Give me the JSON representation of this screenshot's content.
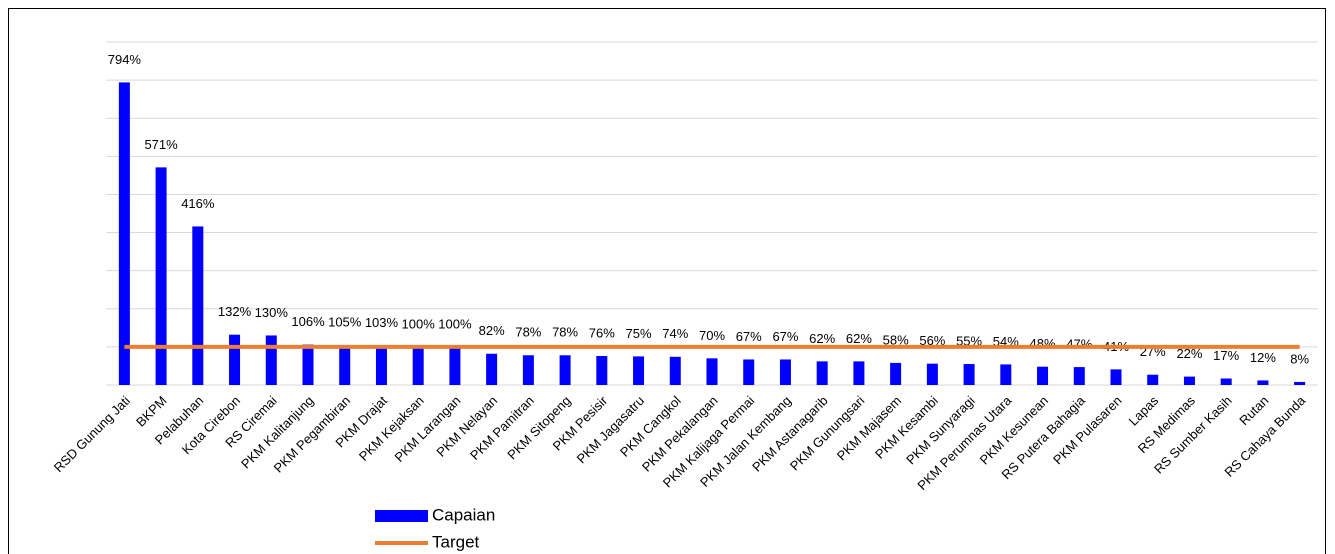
{
  "chart_data": {
    "type": "bar",
    "categories": [
      "RSD Gunung Jati",
      "BKPM",
      "Pelabuhan",
      "Kota Cirebon",
      "RS Ciremai",
      "PKM Kalitanjung",
      "PKM Pegambiran",
      "PKM Drajat",
      "PKM Kejaksan",
      "PKM Larangan",
      "PKM Nelayan",
      "PKM Pamitran",
      "PKM Sitopeng",
      "PKM Pesisir",
      "PKM Jagasatru",
      "PKM Cangkol",
      "PKM Pekalangan",
      "PKM Kalijaga Permai",
      "PKM Jalan Kembang",
      "PKM Astanagarib",
      "PKM Gunungsari",
      "PKM Majasem",
      "PKM Kesambi",
      "PKM Sunyaragi",
      "PKM Perumnas Utara",
      "PKM Kesunean",
      "RS Putera Bahagia",
      "PKM Pulasaren",
      "Lapas",
      "RS Medimas",
      "RS Sumber Kasih",
      "Rutan",
      "RS Cahaya Bunda"
    ],
    "series": [
      {
        "name": "Capaian",
        "color": "#0000ff",
        "type": "bar",
        "values": [
          794,
          571,
          416,
          132,
          130,
          106,
          105,
          103,
          100,
          100,
          82,
          78,
          78,
          76,
          75,
          74,
          70,
          67,
          67,
          62,
          62,
          58,
          56,
          55,
          54,
          48,
          47,
          41,
          27,
          22,
          17,
          12,
          8
        ],
        "value_labels": [
          "794%",
          "571%",
          "416%",
          "132%",
          "130%",
          "106%",
          "105%",
          "103%",
          "100%",
          "100%",
          "82%",
          "78%",
          "78%",
          "76%",
          "75%",
          "74%",
          "70%",
          "67%",
          "67%",
          "62%",
          "62%",
          "58%",
          "56%",
          "55%",
          "54%",
          "48%",
          "47%",
          "41%",
          "27%",
          "22%",
          "17%",
          "12%",
          "8%"
        ]
      },
      {
        "name": "Target",
        "color": "#ed7d31",
        "type": "line",
        "values": [
          100,
          100,
          100,
          100,
          100,
          100,
          100,
          100,
          100,
          100,
          100,
          100,
          100,
          100,
          100,
          100,
          100,
          100,
          100,
          100,
          100,
          100,
          100,
          100,
          100,
          100,
          100,
          100,
          100,
          100,
          100,
          100,
          100
        ]
      }
    ],
    "ylim": [
      0,
      900
    ],
    "yticks": [
      0,
      100,
      200,
      300,
      400,
      500,
      600,
      700,
      800,
      900
    ],
    "grid": true
  }
}
